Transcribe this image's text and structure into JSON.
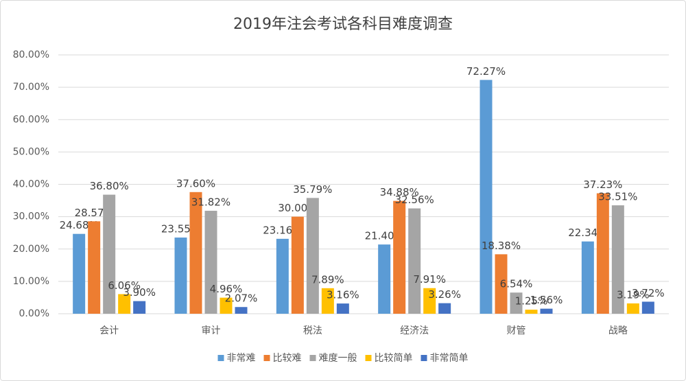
{
  "chart_data": {
    "type": "bar",
    "title": "2019年注会考试各科目难度调查",
    "categories": [
      "会计",
      "审计",
      "税法",
      "经济法",
      "财管",
      "战略"
    ],
    "series": [
      {
        "name": "非常难",
        "color": "#5b9bd5",
        "values": [
          24.68,
          23.55,
          23.16,
          21.4,
          72.27,
          22.34
        ],
        "value_labels": [
          "24.68%",
          "23.55%",
          "23.16%",
          "21.40%",
          "72.27%",
          "22.34%"
        ]
      },
      {
        "name": "比较难",
        "color": "#ed7d31",
        "values": [
          28.57,
          37.6,
          30,
          34.88,
          18.38,
          37.23
        ],
        "value_labels": [
          "28.57%",
          "37.60%",
          "30.00%",
          "34.88%",
          "18.38%",
          "37.23%"
        ]
      },
      {
        "name": "难度一般",
        "color": "#a5a5a5",
        "values": [
          36.8,
          31.82,
          35.79,
          32.56,
          6.54,
          33.51
        ],
        "value_labels": [
          "36.80%",
          "31.82%",
          "35.79%",
          "32.56%",
          "6.54%",
          "33.51%"
        ]
      },
      {
        "name": "比较简单",
        "color": "#ffc000",
        "values": [
          6.06,
          4.96,
          7.89,
          7.91,
          1.25,
          3.19
        ],
        "value_labels": [
          "6.06%",
          "4.96%",
          "7.89%",
          "7.91%",
          "1.25%",
          "3.19%"
        ]
      },
      {
        "name": "非常简单",
        "color": "#4472c4",
        "values": [
          3.9,
          2.07,
          3.16,
          3.26,
          1.56,
          3.72
        ],
        "value_labels": [
          "3.90%",
          "2.07%",
          "3.16%",
          "3.26%",
          "1.56%",
          "3.72%"
        ]
      }
    ],
    "ylim": [
      0,
      80
    ],
    "yticks": [
      {
        "value": 0,
        "label": "0.00%"
      },
      {
        "value": 10,
        "label": "10.00%"
      },
      {
        "value": 20,
        "label": "20.00%"
      },
      {
        "value": 30,
        "label": "30.00%"
      },
      {
        "value": 40,
        "label": "40.00%"
      },
      {
        "value": 50,
        "label": "50.00%"
      },
      {
        "value": 60,
        "label": "60.00%"
      },
      {
        "value": 70,
        "label": "70.00%"
      },
      {
        "value": 80,
        "label": "80.00%"
      }
    ],
    "grid": true,
    "legend": "bottom"
  }
}
